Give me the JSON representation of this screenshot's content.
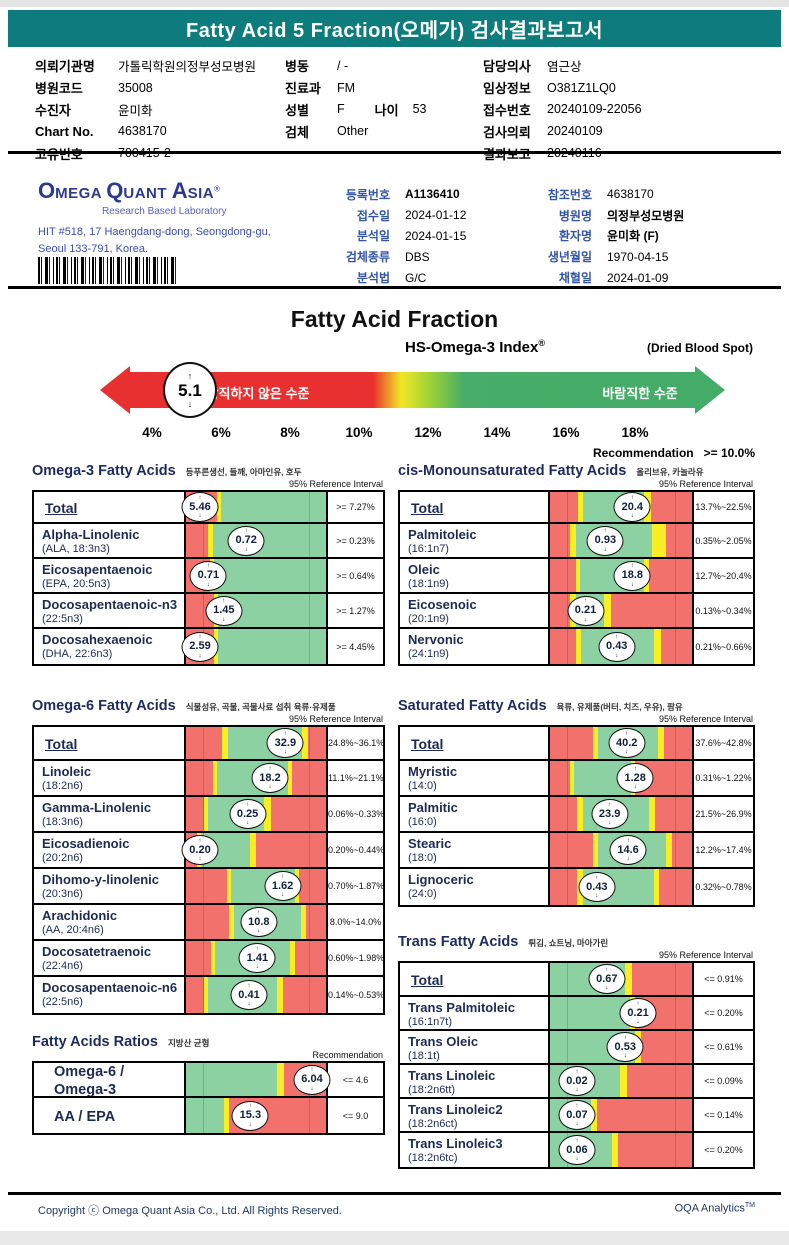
{
  "report": {
    "title": "Fatty Acid 5 Fraction(오메가) 검사결과보고서",
    "accent_teal": "#0e7c7c"
  },
  "patient_info": {
    "col1": [
      {
        "label": "의뢰기관명",
        "value": "가톨릭학원의정부성모병원"
      },
      {
        "label": "병원코드",
        "value": "35008"
      },
      {
        "label": "수진자",
        "value": "윤미화"
      },
      {
        "label": "Chart No.",
        "value": "4638170"
      },
      {
        "label": "고유번호",
        "value": "700415-2"
      }
    ],
    "col2": [
      {
        "label": "병동",
        "value": "/ -"
      },
      {
        "label": "진료과",
        "value": "FM"
      },
      {
        "label": "성별",
        "value": "F",
        "label2": "나이",
        "value2": "53"
      },
      {
        "label": "검체",
        "value": "Other"
      }
    ],
    "col3": [
      {
        "label": "담당의사",
        "value": "염근상"
      },
      {
        "label": "임상정보",
        "value": "O381Z1LQ0"
      },
      {
        "label": "접수번호",
        "value": "20240109-22056"
      },
      {
        "label": "검사의뢰",
        "value": "20240109"
      },
      {
        "label": "결과보고",
        "value": "20240116"
      }
    ]
  },
  "lab": {
    "name_parts": [
      {
        "big": "O",
        "rest": "MEGA"
      },
      {
        "big": "Q",
        "rest": "UANT"
      },
      {
        "big": "A",
        "rest": "SIA"
      }
    ],
    "reg_mark": "®",
    "tagline": "Research Based Laboratory",
    "address1": "HIT #518, 17 Haengdang-dong, Seongdong-gu,",
    "address2": "Seoul 133-791, Korea.",
    "meta_left": [
      {
        "label": "등록번호",
        "value": "A1136410",
        "bold": true
      },
      {
        "label": "접수일",
        "value": "2024-01-12"
      },
      {
        "label": "분석일",
        "value": "2024-01-15"
      },
      {
        "label": "검체종류",
        "value": "DBS"
      },
      {
        "label": "분석법",
        "value": "G/C"
      }
    ],
    "meta_right": [
      {
        "label": "참조번호",
        "value": "4638170"
      },
      {
        "label": "병원명",
        "value": "의정부성모병원",
        "bold": true
      },
      {
        "label": "환자명",
        "value": "윤미화 (F)",
        "bold": true
      },
      {
        "label": "생년월일",
        "value": "1970-04-15"
      },
      {
        "label": "채혈일",
        "value": "2024-01-09"
      }
    ]
  },
  "gauge": {
    "title": "Fatty Acid Fraction",
    "index_label": "HS-Omega-3 Index",
    "index_reg": "®",
    "sample_type": "(Dried Blood Spot)",
    "value": "5.1",
    "bad_label": "바람직하지 않은 수준",
    "good_label": "바람직한 수준",
    "ticks": [
      "4%",
      "6%",
      "8%",
      "10%",
      "12%",
      "14%",
      "16%",
      "18%"
    ],
    "rec_label": "Recommendation",
    "rec_value": ">=  10.0%"
  },
  "colors": {
    "bar_red": "#f2716c",
    "bar_yellow": "#f7ef24",
    "bar_green": "#8cd1a2"
  },
  "tables": [
    {
      "title": "Omega-3 Fatty Acids",
      "subtitle": "등푸른생선, 들깨, 아마인유, 호두",
      "ref_header": "95% Reference Interval",
      "rows": [
        {
          "name": "Total",
          "total": true,
          "value": "5.46",
          "ref": ">= 7.27%",
          "pos": 10,
          "segs": [
            [
              "r",
              22
            ],
            [
              "y",
              3
            ],
            [
              "g",
              75
            ]
          ]
        },
        {
          "name": "Alpha-Linolenic",
          "formula": "(ALA, 18:3n3)",
          "value": "0.72",
          "ref": ">= 0.23%",
          "pos": 43,
          "segs": [
            [
              "r",
              16
            ],
            [
              "y",
              3
            ],
            [
              "g",
              81
            ]
          ]
        },
        {
          "name": "Eicosapentaenoic",
          "formula": "(EPA, 20:5n3)",
          "value": "0.71",
          "ref": ">= 0.64%",
          "pos": 16,
          "segs": [
            [
              "r",
              17
            ],
            [
              "y",
              3
            ],
            [
              "g",
              80
            ]
          ]
        },
        {
          "name": "Docosapentaenoic-n3",
          "formula": "(22:5n3)",
          "value": "1.45",
          "ref": ">= 1.27%",
          "pos": 27,
          "segs": [
            [
              "r",
              20
            ],
            [
              "y",
              3
            ],
            [
              "g",
              77
            ]
          ]
        },
        {
          "name": "Docosahexaenoic",
          "formula": "(DHA, 22:6n3)",
          "value": "2.59",
          "ref": ">= 4.45%",
          "pos": 10,
          "segs": [
            [
              "r",
              20
            ],
            [
              "y",
              3
            ],
            [
              "g",
              77
            ]
          ]
        }
      ]
    },
    {
      "title": "cis-Monounsaturated Fatty Acids",
      "subtitle": "올리브유, 카놀라유",
      "ref_header": "95% Reference Interval",
      "rows": [
        {
          "name": "Total",
          "total": true,
          "value": "20.4",
          "ref": "13.7%~22.5%",
          "pos": 58,
          "segs": [
            [
              "r",
              20
            ],
            [
              "y",
              3
            ],
            [
              "g",
              43
            ],
            [
              "y",
              5
            ],
            [
              "r",
              29
            ]
          ]
        },
        {
          "name": "Palmitoleic",
          "formula": "(16:1n7)",
          "value": "0.93",
          "ref": "0.35%~2.05%",
          "pos": 39,
          "segs": [
            [
              "r",
              14
            ],
            [
              "y",
              4
            ],
            [
              "g",
              54
            ],
            [
              "y",
              10
            ],
            [
              "r",
              18
            ]
          ]
        },
        {
          "name": "Oleic",
          "formula": "(18:1n9)",
          "value": "18.8",
          "ref": "12.7%~20.4%",
          "pos": 58,
          "segs": [
            [
              "r",
              18
            ],
            [
              "y",
              3
            ],
            [
              "g",
              45
            ],
            [
              "y",
              4
            ],
            [
              "r",
              30
            ]
          ]
        },
        {
          "name": "Eicosenoic",
          "formula": "(20:1n9)",
          "value": "0.21",
          "ref": "0.13%~0.34%",
          "pos": 25,
          "segs": [
            [
              "r",
              14
            ],
            [
              "y",
              4
            ],
            [
              "g",
              20
            ],
            [
              "y",
              5
            ],
            [
              "r",
              57
            ]
          ]
        },
        {
          "name": "Nervonic",
          "formula": "(24:1n9)",
          "value": "0.43",
          "ref": "0.21%~0.66%",
          "pos": 47,
          "segs": [
            [
              "r",
              18
            ],
            [
              "y",
              4
            ],
            [
              "g",
              51
            ],
            [
              "y",
              5
            ],
            [
              "r",
              22
            ]
          ]
        }
      ]
    },
    {
      "title": "Omega-6 Fatty Acids",
      "subtitle": "식물성유, 곡물, 곡물사료 섭취 육류·유제품",
      "ref_header": "95% Reference Interval",
      "rows": [
        {
          "name": "Total",
          "total": true,
          "value": "32.9",
          "ref": "24.8%~36.1%",
          "pos": 71,
          "segs": [
            [
              "r",
              26
            ],
            [
              "y",
              4
            ],
            [
              "g",
              53
            ],
            [
              "y",
              4
            ],
            [
              "r",
              13
            ]
          ]
        },
        {
          "name": "Linoleic",
          "formula": "(18:2n6)",
          "value": "18.2",
          "ref": "11.1%~21.1%",
          "pos": 60,
          "segs": [
            [
              "r",
              19
            ],
            [
              "y",
              3
            ],
            [
              "g",
              51
            ],
            [
              "y",
              3
            ],
            [
              "r",
              24
            ]
          ]
        },
        {
          "name": "Gamma-Linolenic",
          "formula": "(18:3n6)",
          "value": "0.25",
          "ref": "0.06%~0.33%",
          "pos": 44,
          "segs": [
            [
              "r",
              13
            ],
            [
              "y",
              3
            ],
            [
              "g",
              40
            ],
            [
              "y",
              5
            ],
            [
              "r",
              39
            ]
          ]
        },
        {
          "name": "Eicosadienoic",
          "formula": "(20:2n6)",
          "value": "0.20",
          "ref": "0.20%~0.44%",
          "pos": 10,
          "segs": [
            [
              "r",
              8
            ],
            [
              "y",
              3
            ],
            [
              "g",
              35
            ],
            [
              "y",
              4
            ],
            [
              "r",
              50
            ]
          ]
        },
        {
          "name": "Dihomo-y-linolenic",
          "formula": "(20:3n6)",
          "value": "1.62",
          "ref": "0.70%~1.87%",
          "pos": 69,
          "segs": [
            [
              "r",
              29
            ],
            [
              "y",
              3
            ],
            [
              "g",
              46
            ],
            [
              "y",
              3
            ],
            [
              "r",
              19
            ]
          ]
        },
        {
          "name": "Arachidonic",
          "formula": "(AA, 20:4n6)",
          "value": "10.8",
          "ref": "8.0%~14.0%",
          "pos": 52,
          "segs": [
            [
              "r",
              31
            ],
            [
              "y",
              3
            ],
            [
              "g",
              48
            ],
            [
              "y",
              4
            ],
            [
              "r",
              14
            ]
          ]
        },
        {
          "name": "Docosatetraenoic",
          "formula": "(22:4n6)",
          "value": "1.41",
          "ref": "0.60%~1.98%",
          "pos": 51,
          "segs": [
            [
              "r",
              18
            ],
            [
              "y",
              3
            ],
            [
              "g",
              53
            ],
            [
              "y",
              4
            ],
            [
              "r",
              22
            ]
          ]
        },
        {
          "name": "Docosapentaenoic-n6",
          "formula": "(22:5n6)",
          "value": "0.41",
          "ref": "0.14%~0.53%",
          "pos": 45,
          "segs": [
            [
              "r",
              13
            ],
            [
              "y",
              3
            ],
            [
              "g",
              49
            ],
            [
              "y",
              4
            ],
            [
              "r",
              31
            ]
          ]
        }
      ]
    },
    {
      "title": "Saturated Fatty Acids",
      "subtitle": "육류, 유제품(버터, 치즈, 우유), 팜유",
      "ref_header": "95% Reference Interval",
      "rows": [
        {
          "name": "Total",
          "total": true,
          "value": "40.2",
          "ref": "37.6%~42.8%",
          "pos": 54,
          "segs": [
            [
              "r",
              30
            ],
            [
              "y",
              4
            ],
            [
              "g",
              42
            ],
            [
              "y",
              4
            ],
            [
              "r",
              20
            ]
          ]
        },
        {
          "name": "Myristic",
          "formula": "(14:0)",
          "value": "1.28",
          "ref": "0.31%~1.22%",
          "pos": 60,
          "segs": [
            [
              "r",
              14
            ],
            [
              "y",
              3
            ],
            [
              "g",
              40
            ],
            [
              "y",
              3
            ],
            [
              "r",
              40
            ]
          ]
        },
        {
          "name": "Palmitic",
          "formula": "(16:0)",
          "value": "23.9",
          "ref": "21.5%~26.9%",
          "pos": 42,
          "segs": [
            [
              "r",
              19
            ],
            [
              "y",
              4
            ],
            [
              "g",
              47
            ],
            [
              "y",
              4
            ],
            [
              "r",
              26
            ]
          ]
        },
        {
          "name": "Stearic",
          "formula": "(18:0)",
          "value": "14.6",
          "ref": "12.2%~17.4%",
          "pos": 55,
          "segs": [
            [
              "r",
              30
            ],
            [
              "y",
              4
            ],
            [
              "g",
              48
            ],
            [
              "y",
              4
            ],
            [
              "r",
              14
            ]
          ]
        },
        {
          "name": "Lignoceric",
          "formula": "(24:0)",
          "value": "0.43",
          "ref": "0.32%~0.78%",
          "pos": 33,
          "segs": [
            [
              "r",
              19
            ],
            [
              "y",
              4
            ],
            [
              "g",
              50
            ],
            [
              "y",
              4
            ],
            [
              "r",
              23
            ]
          ]
        }
      ]
    },
    {
      "title": "Trans Fatty Acids",
      "subtitle": "튀김, 쇼트닝, 마아가린",
      "ref_header": "95% Reference Interval",
      "rows": [
        {
          "name": "Total",
          "total": true,
          "value": "0.67",
          "ref": "<= 0.91%",
          "pos": 40,
          "segs": [
            [
              "g",
              53
            ],
            [
              "y",
              5
            ],
            [
              "r",
              42
            ]
          ]
        },
        {
          "name": "Trans Palmitoleic",
          "formula": "(16:1n7t)",
          "value": "0.21",
          "ref": "<= 0.20%",
          "pos": 62,
          "segs": [
            [
              "g",
              56
            ],
            [
              "y",
              4
            ],
            [
              "r",
              40
            ]
          ]
        },
        {
          "name": "Trans Oleic",
          "formula": "(18:1t)",
          "value": "0.53",
          "ref": "<= 0.61%",
          "pos": 53,
          "segs": [
            [
              "g",
              60
            ],
            [
              "y",
              4
            ],
            [
              "r",
              36
            ]
          ]
        },
        {
          "name": "Trans Linoleic",
          "formula": "(18:2n6tt)",
          "value": "0.02",
          "ref": "<= 0.09%",
          "pos": 19,
          "segs": [
            [
              "g",
              49
            ],
            [
              "y",
              5
            ],
            [
              "r",
              46
            ]
          ]
        },
        {
          "name": "Trans Linoleic2",
          "formula": "(18:2n6ct)",
          "value": "0.07",
          "ref": "<= 0.14%",
          "pos": 19,
          "segs": [
            [
              "g",
              29
            ],
            [
              "y",
              4
            ],
            [
              "r",
              67
            ]
          ]
        },
        {
          "name": "Trans Linoleic3",
          "formula": "(18:2n6tc)",
          "value": "0.06",
          "ref": "<= 0.20%",
          "pos": 19,
          "segs": [
            [
              "g",
              44
            ],
            [
              "y",
              4
            ],
            [
              "r",
              52
            ]
          ]
        }
      ]
    },
    {
      "title": "Fatty Acids Ratios",
      "subtitle": "지방산 균형",
      "ref_header": "Recommendation",
      "ratio": true,
      "rows": [
        {
          "name": "Omega-6 / Omega-3",
          "ratio": true,
          "value": "6.04",
          "ref": "<= 4.6",
          "pos": 90,
          "segs": [
            [
              "g",
              65
            ],
            [
              "y",
              5
            ],
            [
              "r",
              30
            ]
          ]
        },
        {
          "name": "AA / EPA",
          "ratio": true,
          "value": "15.3",
          "ref": "<= 9.0",
          "pos": 46,
          "segs": [
            [
              "g",
              27
            ],
            [
              "y",
              4
            ],
            [
              "r",
              69
            ]
          ]
        }
      ]
    }
  ],
  "footer": {
    "copyright": "Copyright ⓒ Omega Quant Asia Co., Ltd.  All Rights Reserved.",
    "brand": "OQA Analytics",
    "brand_tm": "TM"
  }
}
